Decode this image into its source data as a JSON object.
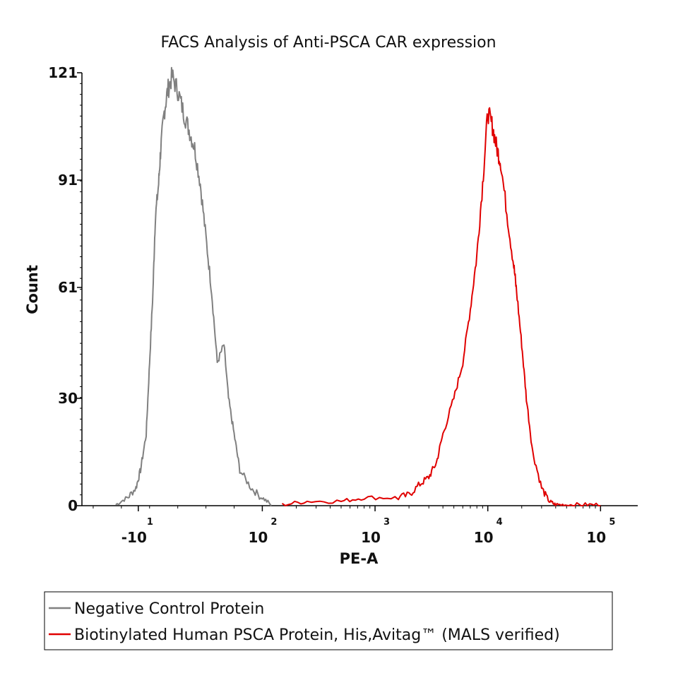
{
  "chart_data": {
    "type": "line",
    "title": "FACS Analysis of Anti-PSCA CAR expression",
    "xlabel": "PE-A",
    "ylabel": "Count",
    "x_scale": "biexponential",
    "y_ticks": [
      "0",
      "30",
      "61",
      "91",
      "121"
    ],
    "y_tick_values": [
      0,
      30,
      61,
      91,
      121
    ],
    "ylim": [
      0,
      121
    ],
    "x_ticks": [
      {
        "base": "-10",
        "exp": "1"
      },
      {
        "base": "10",
        "exp": "2"
      },
      {
        "base": "10",
        "exp": "3"
      },
      {
        "base": "10",
        "exp": "4"
      },
      {
        "base": "10",
        "exp": "5"
      }
    ],
    "x_tick_values": [
      -10,
      100,
      1000,
      10000,
      100000
    ],
    "legend": {
      "position": "bottom",
      "entries": [
        {
          "label": "Negative Control Protein",
          "color": "#808080"
        },
        {
          "label": "Biotinylated Human PSCA Protein, His,Avitag™ (MALS verified)",
          "color": "#e00000"
        }
      ]
    },
    "series": [
      {
        "name": "Negative Control Protein",
        "color": "#808080",
        "x": [
          -30,
          -20,
          -12,
          -8,
          -3,
          0,
          3,
          5,
          8,
          10,
          13,
          16,
          20,
          25,
          30,
          35,
          40,
          45,
          50,
          55,
          60,
          66,
          70,
          75,
          80,
          90,
          100,
          120
        ],
        "y": [
          0,
          2,
          5,
          10,
          20,
          40,
          60,
          80,
          90,
          100,
          110,
          116,
          120,
          116,
          110,
          105,
          100,
          90,
          75,
          60,
          40,
          45,
          30,
          20,
          10,
          5,
          2,
          0
        ]
      },
      {
        "name": "Biotinylated Human PSCA Protein, His,Avitag™ (MALS verified)",
        "color": "#e00000",
        "x": [
          150,
          250,
          500,
          800,
          1500,
          2000,
          2500,
          3000,
          3500,
          4000,
          5000,
          6000,
          7000,
          8000,
          9000,
          10000,
          11000,
          12000,
          13000,
          15000,
          17000,
          18000,
          20000,
          22000,
          25000,
          30000,
          35000,
          40000,
          50000,
          70000,
          100000
        ],
        "y": [
          0,
          1,
          1,
          2,
          2,
          3,
          6,
          8,
          12,
          20,
          30,
          40,
          55,
          70,
          90,
          110,
          106,
          100,
          96,
          80,
          67,
          60,
          45,
          30,
          15,
          5,
          1,
          0,
          0,
          0,
          0
        ]
      }
    ]
  }
}
